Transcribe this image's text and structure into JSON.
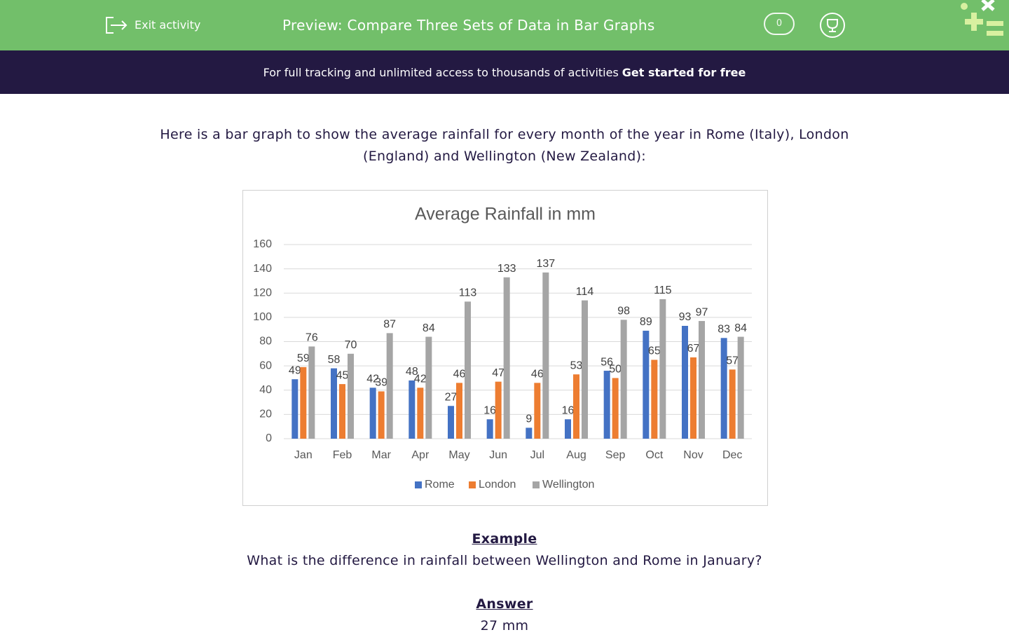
{
  "header": {
    "exit": "Exit activity",
    "title": "Preview: Compare Three Sets of Data in Bar Graphs",
    "score": "0"
  },
  "banner": {
    "text": "For full tracking and unlimited access to thousands of activities",
    "link": "Get started for free"
  },
  "question": "Here is a bar graph to show the average rainfall for every month of the year in Rome (Italy), London (England) and Wellington (New Zealand):",
  "chart_data": {
    "type": "bar",
    "title": "Average Rainfall in mm",
    "categories": [
      "Jan",
      "Feb",
      "Mar",
      "Apr",
      "May",
      "Jun",
      "Jul",
      "Aug",
      "Sep",
      "Oct",
      "Nov",
      "Dec"
    ],
    "series": [
      {
        "name": "Rome",
        "color": "#4472c4",
        "values": [
          49,
          58,
          42,
          48,
          27,
          16,
          9,
          16,
          56,
          89,
          93,
          83
        ]
      },
      {
        "name": "London",
        "color": "#ed7d31",
        "values": [
          59,
          45,
          39,
          42,
          46,
          47,
          46,
          53,
          50,
          65,
          67,
          57
        ]
      },
      {
        "name": "Wellington",
        "color": "#a5a5a5",
        "values": [
          76,
          70,
          87,
          84,
          113,
          133,
          137,
          114,
          98,
          115,
          97,
          84
        ]
      }
    ],
    "ylim": [
      0,
      160
    ],
    "yticks": [
      0,
      20,
      40,
      60,
      80,
      100,
      120,
      140,
      160
    ],
    "grid": true,
    "legend": "bottom"
  },
  "example": {
    "heading": "Example",
    "question": "What is the difference in rainfall between Wellington and Rome in January?",
    "answer_heading": "Answer",
    "answer": "27 mm"
  }
}
